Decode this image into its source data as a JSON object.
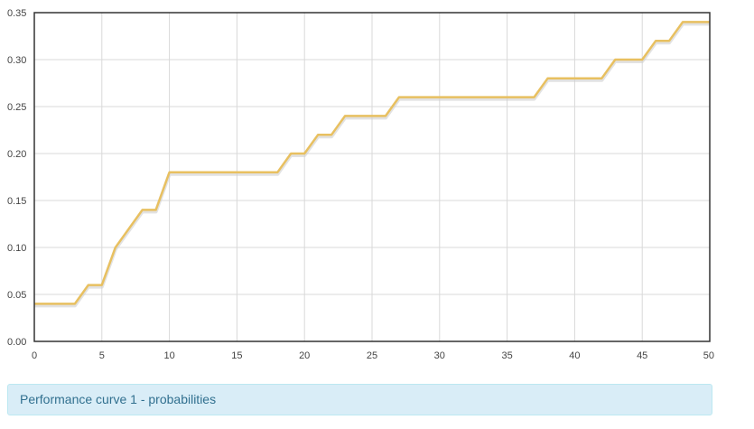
{
  "chart_data": {
    "type": "line",
    "title": "",
    "xlabel": "",
    "ylabel": "",
    "xlim": [
      0,
      50
    ],
    "ylim": [
      0,
      0.35
    ],
    "grid": true,
    "x_ticks": [
      "0",
      "5",
      "10",
      "15",
      "20",
      "25",
      "30",
      "35",
      "40",
      "45",
      "50"
    ],
    "y_ticks": [
      "0.00",
      "0.05",
      "0.10",
      "0.15",
      "0.20",
      "0.25",
      "0.30",
      "0.35"
    ],
    "series": [
      {
        "color": "#e8c060",
        "points": [
          [
            0,
            0.04
          ],
          [
            3,
            0.04
          ],
          [
            4,
            0.06
          ],
          [
            5,
            0.06
          ],
          [
            6,
            0.1
          ],
          [
            8,
            0.14
          ],
          [
            9,
            0.14
          ],
          [
            10,
            0.18
          ],
          [
            18,
            0.18
          ],
          [
            19,
            0.2
          ],
          [
            20,
            0.2
          ],
          [
            21,
            0.22
          ],
          [
            22,
            0.22
          ],
          [
            23,
            0.24
          ],
          [
            26,
            0.24
          ],
          [
            27,
            0.26
          ],
          [
            37,
            0.26
          ],
          [
            38,
            0.28
          ],
          [
            42,
            0.28
          ],
          [
            43,
            0.3
          ],
          [
            45,
            0.3
          ],
          [
            46,
            0.32
          ],
          [
            47,
            0.32
          ],
          [
            48,
            0.34
          ],
          [
            50,
            0.34
          ]
        ]
      }
    ]
  },
  "caption": {
    "text": "Performance curve 1 - probabilities"
  }
}
